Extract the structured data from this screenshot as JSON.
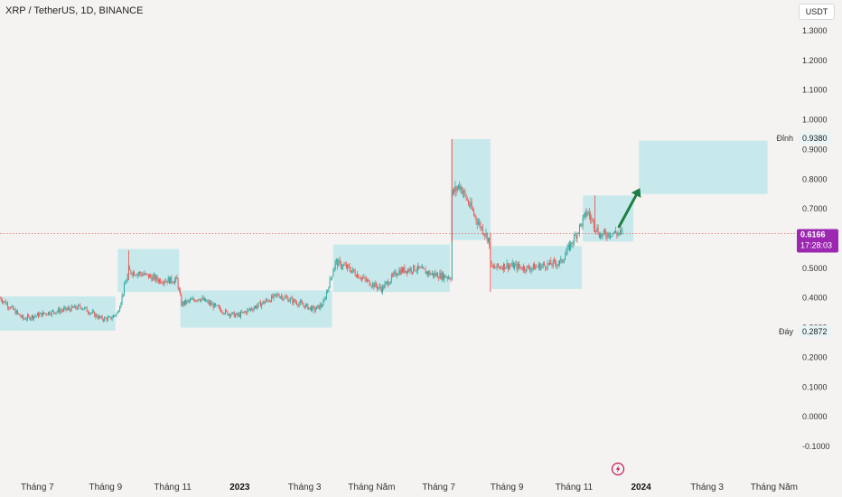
{
  "header": {
    "title": "XRP / TetherUS, 1D, BINANCE",
    "currency": "USDT"
  },
  "colors": {
    "background": "#f4f3f1",
    "box": "#c7e9ec",
    "up": "#26a69a",
    "down": "#ef5350",
    "arrow": "#1e7e45",
    "price_tag": "#9c27b0"
  },
  "price_tag": {
    "price": "0.6166",
    "countdown": "17:28:03"
  },
  "top_label": {
    "text": "Đỉnh",
    "value": "0.9380"
  },
  "bottom_label": {
    "text": "Đáy",
    "value": "0.2872"
  },
  "lightning_icon": "lightning-icon",
  "chart_data": {
    "type": "candlestick",
    "title": "XRP / TetherUS, 1D, BINANCE",
    "y_axis_ticks": [
      "1.3000",
      "1.2000",
      "1.1000",
      "1.0000",
      "0.9000",
      "0.8000",
      "0.7000",
      "0.6000",
      "0.5000",
      "0.4000",
      "0.3000",
      "0.2000",
      "0.1000",
      "0.0000",
      "-0.1000"
    ],
    "ylim": [
      -0.14,
      1.36
    ],
    "x_axis_ticks": [
      {
        "label": "Tháng 7",
        "date": "2022-07-01"
      },
      {
        "label": "Tháng 9",
        "date": "2022-09-01"
      },
      {
        "label": "Tháng 11",
        "date": "2022-11-01"
      },
      {
        "label": "2023",
        "date": "2023-01-01",
        "bold": true
      },
      {
        "label": "Tháng 3",
        "date": "2023-03-01"
      },
      {
        "label": "Tháng Năm",
        "date": "2023-05-01"
      },
      {
        "label": "Tháng 7",
        "date": "2023-07-01"
      },
      {
        "label": "Tháng 9",
        "date": "2023-09-01"
      },
      {
        "label": "Tháng 11",
        "date": "2023-11-01"
      },
      {
        "label": "2024",
        "date": "2024-01-01",
        "bold": true
      },
      {
        "label": "Tháng 3",
        "date": "2024-03-01"
      },
      {
        "label": "Tháng Năm",
        "date": "2024-05-01"
      }
    ],
    "xlim": [
      "2022-05-28",
      "2024-05-20"
    ],
    "price_path": [
      [
        "2022-05-28",
        0.4
      ],
      [
        "2022-06-18",
        0.33
      ],
      [
        "2022-07-10",
        0.35
      ],
      [
        "2022-08-10",
        0.37
      ],
      [
        "2022-08-28",
        0.33
      ],
      [
        "2022-09-05",
        0.33
      ],
      [
        "2022-09-12",
        0.35
      ],
      [
        "2022-09-22",
        0.49
      ],
      [
        "2022-10-05",
        0.48
      ],
      [
        "2022-10-20",
        0.46
      ],
      [
        "2022-11-05",
        0.46
      ],
      [
        "2022-11-09",
        0.38
      ],
      [
        "2022-11-25",
        0.4
      ],
      [
        "2022-12-20",
        0.35
      ],
      [
        "2022-12-30",
        0.34
      ],
      [
        "2023-01-15",
        0.37
      ],
      [
        "2023-02-05",
        0.41
      ],
      [
        "2023-02-25",
        0.38
      ],
      [
        "2023-03-10",
        0.36
      ],
      [
        "2023-03-18",
        0.38
      ],
      [
        "2023-03-29",
        0.52
      ],
      [
        "2023-04-10",
        0.5
      ],
      [
        "2023-04-25",
        0.46
      ],
      [
        "2023-05-10",
        0.43
      ],
      [
        "2023-05-25",
        0.49
      ],
      [
        "2023-06-10",
        0.5
      ],
      [
        "2023-06-25",
        0.48
      ],
      [
        "2023-07-12",
        0.47
      ],
      [
        "2023-07-13",
        0.75
      ],
      [
        "2023-07-20",
        0.78
      ],
      [
        "2023-08-05",
        0.66
      ],
      [
        "2023-08-15",
        0.6
      ],
      [
        "2023-08-18",
        0.5
      ],
      [
        "2023-09-01",
        0.51
      ],
      [
        "2023-09-20",
        0.5
      ],
      [
        "2023-10-05",
        0.51
      ],
      [
        "2023-10-20",
        0.52
      ],
      [
        "2023-11-01",
        0.6
      ],
      [
        "2023-11-13",
        0.69
      ],
      [
        "2023-11-25",
        0.61
      ],
      [
        "2023-12-05",
        0.62
      ],
      [
        "2023-12-15",
        0.6166
      ]
    ],
    "boxes": [
      {
        "from": "2022-05-28",
        "to": "2022-09-10",
        "top": 0.405,
        "bottom": 0.29
      },
      {
        "from": "2022-09-12",
        "to": "2022-11-07",
        "top": 0.565,
        "bottom": 0.42
      },
      {
        "from": "2022-11-08",
        "to": "2023-03-26",
        "top": 0.425,
        "bottom": 0.3
      },
      {
        "from": "2023-03-27",
        "to": "2023-07-11",
        "top": 0.58,
        "bottom": 0.42
      },
      {
        "from": "2023-07-12",
        "to": "2023-08-17",
        "top": 0.935,
        "bottom": 0.595
      },
      {
        "from": "2023-08-18",
        "to": "2023-11-08",
        "top": 0.575,
        "bottom": 0.43
      },
      {
        "from": "2023-11-09",
        "to": "2023-12-25",
        "top": 0.745,
        "bottom": 0.59
      },
      {
        "from": "2023-12-30",
        "to": "2024-04-25",
        "top": 0.93,
        "bottom": 0.75
      }
    ],
    "current_price": 0.6166,
    "arrow": {
      "from_date": "2023-12-12",
      "from_value": 0.64,
      "to_date": "2023-12-31",
      "to_value": 0.77
    }
  }
}
